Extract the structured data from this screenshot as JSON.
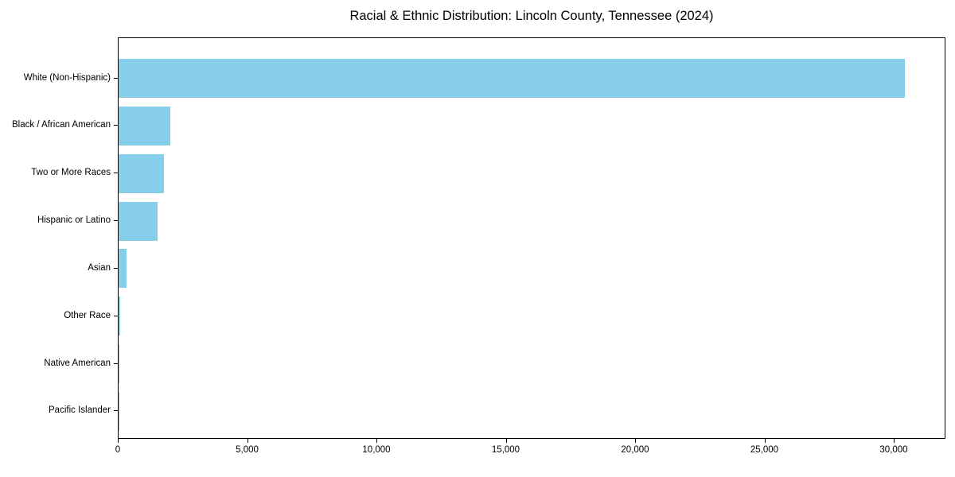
{
  "chart_data": {
    "type": "bar",
    "orientation": "horizontal",
    "title": "Racial & Ethnic Distribution: Lincoln County, Tennessee (2024)",
    "categories": [
      "White (Non-Hispanic)",
      "Black / African American",
      "Two or More Races",
      "Hispanic or Latino",
      "Asian",
      "Other Race",
      "Native American",
      "Pacific Islander"
    ],
    "values": [
      30400,
      2000,
      1750,
      1500,
      300,
      75,
      40,
      15
    ],
    "xlabel": "",
    "ylabel": "",
    "xlim": [
      0,
      32000
    ],
    "x_ticks": [
      0,
      5000,
      10000,
      15000,
      20000,
      25000,
      30000
    ],
    "x_tick_labels": [
      "0",
      "5,000",
      "10,000",
      "15,000",
      "20,000",
      "25,000",
      "30,000"
    ],
    "bar_color": "#87CEEB",
    "spine_color": "#000000",
    "background": "#FFFFFF",
    "grid": false,
    "legend": null
  }
}
